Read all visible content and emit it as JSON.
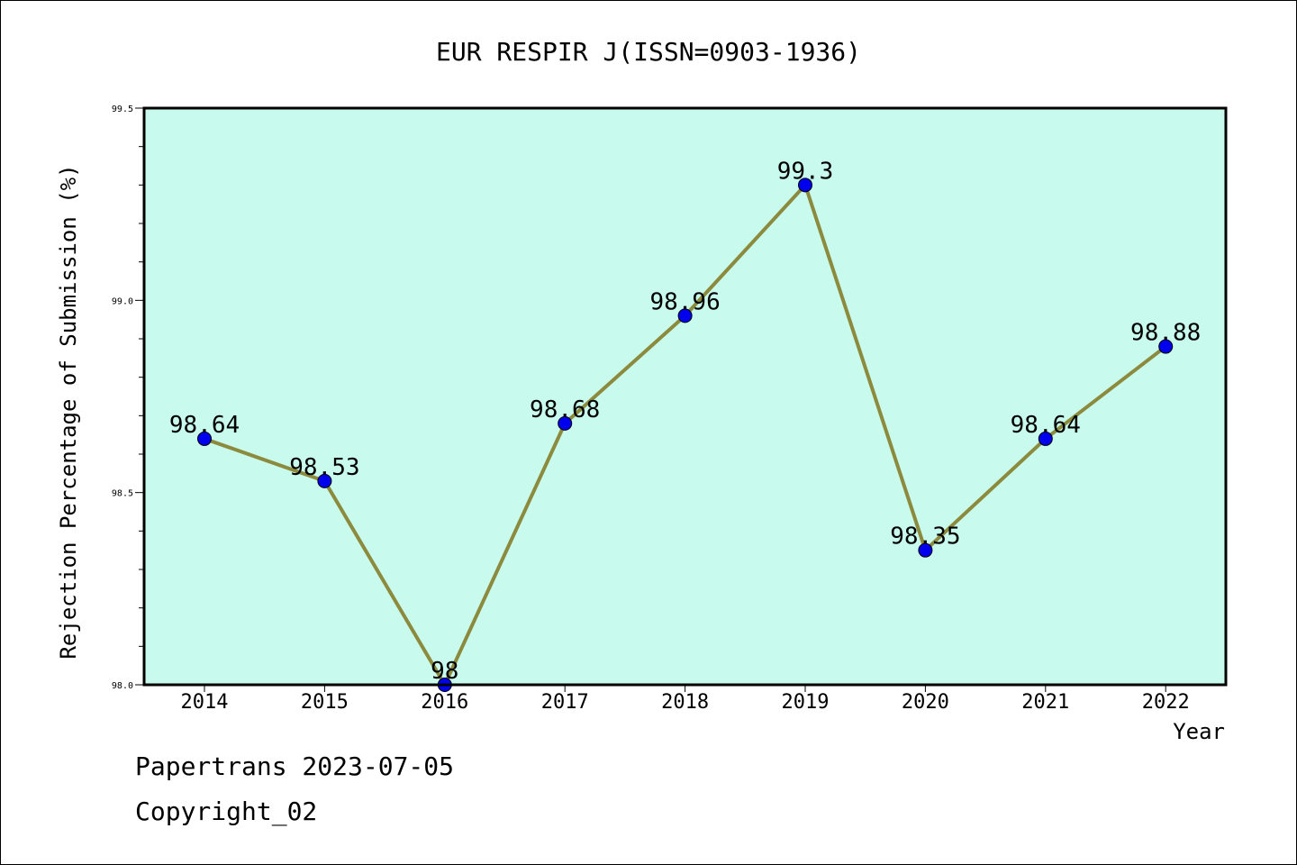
{
  "chart_data": {
    "type": "line",
    "title": "EUR RESPIR J(ISSN=0903-1936)",
    "xlabel": "Year",
    "ylabel": "Rejection Percentage of Submission (%)",
    "categories": [
      "2014",
      "2015",
      "2016",
      "2017",
      "2018",
      "2019",
      "2020",
      "2021",
      "2022"
    ],
    "values": [
      98.64,
      98.53,
      98,
      98.68,
      98.96,
      99.3,
      98.35,
      98.64,
      98.88
    ],
    "data_labels": [
      "98.64",
      "98.53",
      "98",
      "98.68",
      "98.96",
      "99.3",
      "98.35",
      "98.64",
      "98.88"
    ],
    "ylim": [
      98.0,
      99.5
    ],
    "yticks": [
      "98.0",
      "98.5",
      "99.0",
      "99.5"
    ],
    "y_minor_step": 0.1,
    "grid": false,
    "colors": {
      "plot_background": "#c8faee",
      "line": "#8c8a3c",
      "marker": "#0000ee"
    }
  },
  "footer": {
    "line1": "Papertrans 2023-07-05",
    "line2": "Copyright_02"
  }
}
